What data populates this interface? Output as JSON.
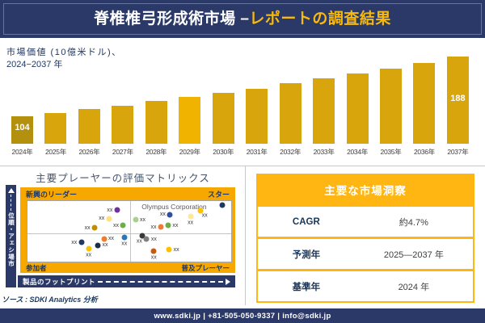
{
  "header": {
    "title_main": "脊椎椎弓形成術市場 –",
    "title_accent": "レポートの調査結果"
  },
  "chart_data": [
    {
      "type": "bar",
      "title_line1": "市場価値 (10億米ドル)、",
      "title_line2": "2024−2037 年",
      "categories": [
        "2024年",
        "2025年",
        "2026年",
        "2027年",
        "2028年",
        "2029年",
        "2030年",
        "2031年",
        "2032年",
        "2033年",
        "2034年",
        "2035年",
        "2036年",
        "2037年"
      ],
      "values": [
        104,
        109,
        114,
        119,
        125,
        131,
        137,
        143,
        150,
        157,
        164,
        171,
        179,
        188
      ],
      "labeled_indices": [
        0,
        13
      ],
      "bar_color": "#D9A50D",
      "bar_color_overrides": {
        "0": "#B3910E",
        "5": "#EFB300"
      },
      "value_label_color": "#FFFFFF",
      "axis_label_color": "#404040",
      "legend": "off",
      "grid": "off"
    },
    {
      "type": "scatter",
      "title": "主要プレーヤーの評価マトリックス",
      "xlabel": "製品のフットプリント",
      "ylabel": "市場シェア・順位",
      "quadrants": {
        "top_left": "新興のリーダー",
        "top_right": "スター",
        "bottom_left": "参加者",
        "bottom_right": "普及プレーヤー"
      },
      "annotation": "Olympus Corporation",
      "point_label_placeholder": "xx",
      "points": [
        {
          "x": 44,
          "y": 15,
          "color": "#7030A0",
          "pos": "left"
        },
        {
          "x": 40,
          "y": 29,
          "color": "#FFE07E",
          "pos": "left"
        },
        {
          "x": 33,
          "y": 44,
          "color": "#BF8F00",
          "pos": "left"
        },
        {
          "x": 47,
          "y": 40,
          "color": "#6FAD47",
          "pos": "left"
        },
        {
          "x": 95.5,
          "y": 7,
          "color": "#1F3864",
          "pos": "none"
        },
        {
          "x": 85,
          "y": 16,
          "color": "#FFC000",
          "pos": "below-right"
        },
        {
          "x": 80,
          "y": 25,
          "color": "#FFE699",
          "pos": "below"
        },
        {
          "x": 70,
          "y": 22,
          "color": "#2E4E9E",
          "pos": "left"
        },
        {
          "x": 53,
          "y": 31,
          "color": "#A9D18E",
          "pos": "right"
        },
        {
          "x": 65.5,
          "y": 43,
          "color": "#ED7D31",
          "pos": "left"
        },
        {
          "x": 69,
          "y": 40,
          "color": "#6FAD47",
          "pos": "right"
        },
        {
          "x": 37.5,
          "y": 62,
          "color": "#ED7D31",
          "pos": "right"
        },
        {
          "x": 47.5,
          "y": 60,
          "color": "#2E75B6",
          "pos": "below"
        },
        {
          "x": 26.5,
          "y": 68,
          "color": "#203864",
          "pos": "left"
        },
        {
          "x": 34.5,
          "y": 73,
          "color": "#1F2C45",
          "pos": "right"
        },
        {
          "x": 30,
          "y": 78,
          "color": "#FFC000",
          "pos": "below"
        },
        {
          "x": 56.5,
          "y": 57,
          "color": "#3B3838",
          "pos": "below-left"
        },
        {
          "x": 58.5,
          "y": 63,
          "color": "#808080",
          "pos": "right"
        },
        {
          "x": 69.5,
          "y": 80,
          "color": "#FFC000",
          "pos": "right"
        },
        {
          "x": 62,
          "y": 82,
          "color": "#C55A11",
          "pos": "below"
        }
      ]
    },
    {
      "type": "table",
      "title": "主要な市場洞察",
      "rows": [
        {
          "label": "CAGR",
          "value": "約4.7%"
        },
        {
          "label": "予測年",
          "value": "2025—2037 年"
        },
        {
          "label": "基準年",
          "value": "2024 年"
        }
      ]
    }
  ],
  "source": {
    "text": "ソース : SDKI Analytics 分析"
  },
  "footer": {
    "text": "www.sdki.jp | +81-505-050-9337 | info@sdki.jp"
  },
  "colors": {
    "navy": "#2B3968",
    "gold_band": "#F7A800",
    "table_gold": "#FFB612",
    "bar_gold": "#D9A50D",
    "title_accent": "#F5B90F"
  }
}
